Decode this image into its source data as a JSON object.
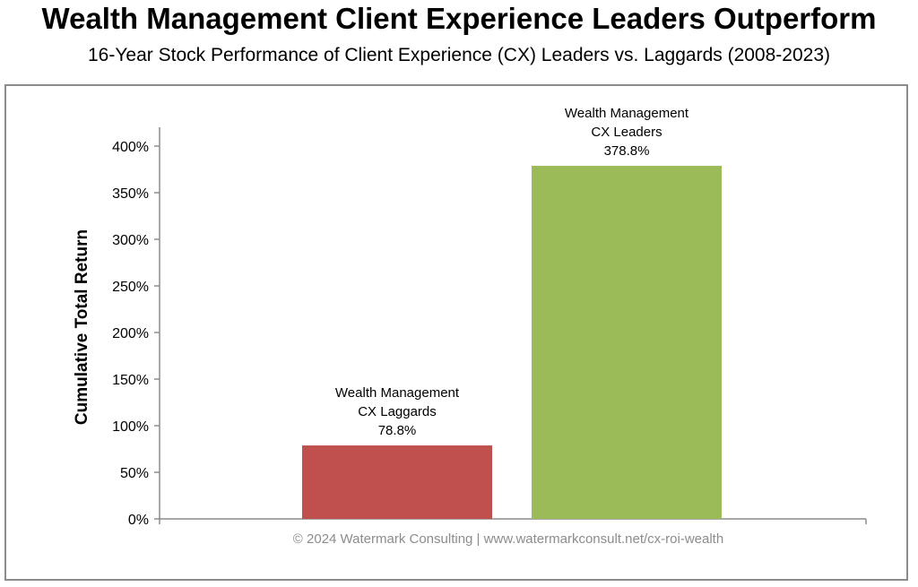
{
  "chart_data": {
    "type": "bar",
    "title": "Wealth Management Client Experience Leaders Outperform",
    "subtitle": "16-Year Stock Performance of Client Experience (CX) Leaders vs. Laggards (2008-2023)",
    "ylabel": "Cumulative Total Return",
    "xlabel": "",
    "categories": [
      {
        "lines": [
          "Wealth Management",
          "CX Laggards"
        ]
      },
      {
        "lines": [
          "Wealth Management",
          "CX Leaders"
        ]
      }
    ],
    "values": [
      78.8,
      378.8
    ],
    "data_labels": [
      "78.8%",
      "378.8%"
    ],
    "colors": [
      "#c0504d",
      "#9bbb59"
    ],
    "ylim": [
      0,
      400
    ],
    "yticks": [
      0,
      50,
      100,
      150,
      200,
      250,
      300,
      350,
      400
    ],
    "ytick_labels": [
      "0%",
      "50%",
      "100%",
      "150%",
      "200%",
      "250%",
      "300%",
      "350%",
      "400%"
    ],
    "grid": false,
    "legend": "none",
    "footer": "© 2024 Watermark Consulting | www.watermarkconsult.net/cx-roi-wealth"
  }
}
